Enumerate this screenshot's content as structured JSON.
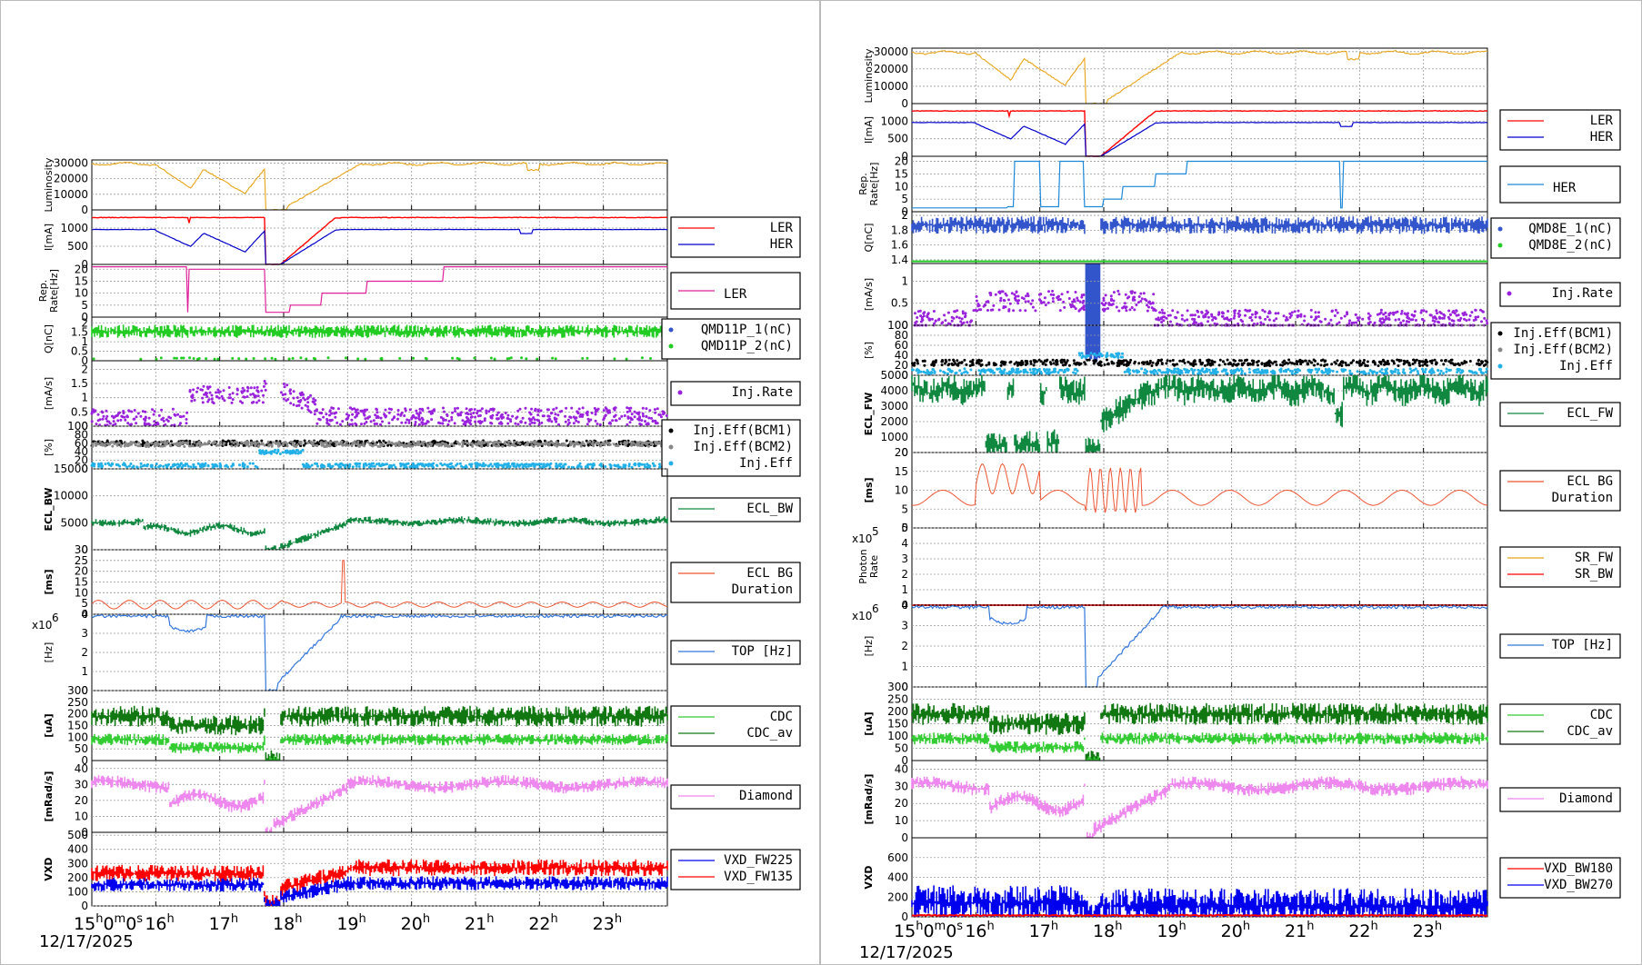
{
  "date": "12/17/2025",
  "x_axis": {
    "start_label": "15h0m0s",
    "ticks": [
      {
        "h": 16,
        "main": "16",
        "sup": "h"
      },
      {
        "h": 17,
        "main": "17",
        "sup": "h"
      },
      {
        "h": 18,
        "main": "18",
        "sup": "h"
      },
      {
        "h": 19,
        "main": "19",
        "sup": "h"
      },
      {
        "h": 20,
        "main": "20",
        "sup": "h"
      },
      {
        "h": 21,
        "main": "21",
        "sup": "h"
      },
      {
        "h": 22,
        "main": "22",
        "sup": "h"
      },
      {
        "h": 23,
        "main": "23",
        "sup": "h"
      }
    ],
    "range_hours": [
      15,
      24
    ]
  },
  "colors": {
    "luminosity": "#e8a317",
    "ler": "#ff0000",
    "her": "#0000cc",
    "rep_rate_ler": "#e0209a",
    "rep_rate_her": "#1e88d8",
    "q_ler1": "#3355cc",
    "q_ler2": "#22cc22",
    "inj_rate": "#9a22dd",
    "eff1": "#000000",
    "eff2": "#888888",
    "eff": "#22b0e8",
    "ecl": "#108840",
    "ecl_bg": "#ee5533",
    "sr_fw": "#e8a317",
    "sr_bw": "#ff0000",
    "top": "#3377dd",
    "cdc": "#33cc33",
    "cdc_av": "#117711",
    "diamond": "#ee88ee",
    "vxd_a": "#0000ee",
    "vxd_b": "#ff0000"
  },
  "panels": {
    "left": [
      {
        "key": "lum",
        "ylabel": "Luminosity",
        "yticks": [
          "30000",
          "20000",
          "10000",
          "0"
        ],
        "ylim": [
          0,
          32000
        ],
        "legend": [
          {
            "label": "",
            "kind": "none"
          }
        ]
      },
      {
        "key": "cur",
        "ylabel": "I[mA]",
        "yticks": [
          "1000",
          "500",
          "0"
        ],
        "ylim": [
          0,
          1500
        ],
        "legend": [
          {
            "label": "LER",
            "kind": "line",
            "color": "ler"
          },
          {
            "label": "HER",
            "kind": "line",
            "color": "her"
          }
        ]
      },
      {
        "key": "rep",
        "ylabel": "Rep.\nRate[Hz]",
        "yticks": [
          "20",
          "15",
          "10",
          "5",
          "0"
        ],
        "ylim": [
          0,
          22
        ],
        "legend": [
          {
            "label": "LER",
            "kind": "line",
            "color": "rep_rate_ler",
            "big": true
          }
        ]
      },
      {
        "key": "q",
        "ylabel": "Q[nC]",
        "yticks": [
          "2",
          "1.5",
          "1",
          "0.5",
          "0"
        ],
        "ylim": [
          0,
          2.3
        ],
        "legend": [
          {
            "label": "QMD11P_1(nC)",
            "kind": "dot",
            "color": "q_ler1"
          },
          {
            "label": "QMD11P_2(nC)",
            "kind": "dot",
            "color": "q_ler2"
          }
        ]
      },
      {
        "key": "ir",
        "ylabel": "[mA/s]",
        "yticks": [
          "2",
          "1.5",
          "1",
          "0.5",
          "0"
        ],
        "ylim": [
          0,
          2.3
        ],
        "legend": [
          {
            "label": "Inj.Rate",
            "kind": "dot",
            "color": "inj_rate"
          }
        ]
      },
      {
        "key": "eff",
        "ylabel": "[%]",
        "yticks": [
          "100",
          "80",
          "60",
          "40",
          "20",
          "0"
        ],
        "ylim": [
          0,
          100
        ],
        "legend": [
          {
            "label": "Inj.Eff(BCM1)",
            "kind": "dot",
            "color": "eff1"
          },
          {
            "label": "Inj.Eff(BCM2)",
            "kind": "dot",
            "color": "eff2"
          },
          {
            "label": "Inj.Eff",
            "kind": "dot",
            "color": "eff"
          }
        ]
      },
      {
        "key": "ecl",
        "ylabel": "ECL_BW",
        "yticks": [
          "15000",
          "10000",
          "5000",
          "0"
        ],
        "ylim": [
          0,
          15000
        ],
        "legend": [
          {
            "label": "ECL_BW",
            "kind": "line",
            "color": "ecl"
          }
        ]
      },
      {
        "key": "bg",
        "ylabel": "[ms]",
        "yticks": [
          "30",
          "25",
          "20",
          "15",
          "10",
          "5",
          "0"
        ],
        "ylim": [
          0,
          30
        ],
        "legend": [
          {
            "label": "ECL BG\nDuration",
            "kind": "line",
            "color": "ecl_bg"
          }
        ]
      },
      {
        "key": "top",
        "ylabel": "[Hz]",
        "scale": "x10",
        "scale_exp": "6",
        "yticks": [
          "4",
          "3",
          "2",
          "1",
          "0"
        ],
        "ylim": [
          0,
          4
        ],
        "legend": [
          {
            "label": "TOP [Hz]",
            "kind": "line",
            "color": "top"
          }
        ]
      },
      {
        "key": "cdc",
        "ylabel": "[uA]",
        "yticks": [
          "300",
          "250",
          "200",
          "150",
          "100",
          "50",
          "0"
        ],
        "ylim": [
          0,
          300
        ],
        "legend": [
          {
            "label": "CDC",
            "kind": "line",
            "color": "cdc"
          },
          {
            "label": "CDC_av",
            "kind": "line",
            "color": "cdc_av"
          }
        ]
      },
      {
        "key": "dia",
        "ylabel": "[mRad/s]",
        "yticks": [
          "40",
          "30",
          "20",
          "10",
          "0"
        ],
        "ylim": [
          0,
          45
        ],
        "legend": [
          {
            "label": "Diamond",
            "kind": "line",
            "color": "diamond"
          }
        ]
      },
      {
        "key": "vxd",
        "ylabel": "VXD",
        "yticks": [
          "500",
          "400",
          "300",
          "200",
          "100",
          "0"
        ],
        "ylim": [
          0,
          520
        ],
        "legend": [
          {
            "label": "VXD_FW225",
            "kind": "line",
            "color": "vxd_a"
          },
          {
            "label": "VXD_FW135",
            "kind": "line",
            "color": "vxd_b"
          }
        ]
      }
    ],
    "right": [
      {
        "key": "lum",
        "ylabel": "Luminosity",
        "yticks": [
          "30000",
          "20000",
          "10000",
          "0"
        ],
        "ylim": [
          0,
          32000
        ],
        "legend": [
          {
            "label": "",
            "kind": "none"
          }
        ]
      },
      {
        "key": "cur",
        "ylabel": "I[mA]",
        "yticks": [
          "1000",
          "500",
          "0"
        ],
        "ylim": [
          0,
          1500
        ],
        "legend": [
          {
            "label": "LER",
            "kind": "line",
            "color": "ler"
          },
          {
            "label": "HER",
            "kind": "line",
            "color": "her"
          }
        ]
      },
      {
        "key": "rep",
        "ylabel": "Rep.\nRate[Hz]",
        "yticks": [
          "20",
          "15",
          "10",
          "5",
          "0"
        ],
        "ylim": [
          0,
          22
        ],
        "legend": [
          {
            "label": "HER",
            "kind": "line",
            "color": "rep_rate_her",
            "big": true
          }
        ]
      },
      {
        "key": "q",
        "ylabel": "Q[nC]",
        "yticks": [
          "2",
          "1.8",
          "1.6",
          "1.4"
        ],
        "ylim": [
          1.35,
          2.05
        ],
        "legend": [
          {
            "label": "QMD8E_1(nC)",
            "kind": "dot",
            "color": "q_ler1"
          },
          {
            "label": "QMD8E_2(nC)",
            "kind": "dot",
            "color": "q_ler2"
          }
        ]
      },
      {
        "key": "ir",
        "ylabel": "[mA/s]",
        "yticks": [
          "1",
          "0.5",
          "0"
        ],
        "ylim": [
          0,
          1.4
        ],
        "legend": [
          {
            "label": "Inj.Rate",
            "kind": "dot",
            "color": "inj_rate"
          }
        ]
      },
      {
        "key": "eff",
        "ylabel": "[%]",
        "yticks": [
          "100",
          "80",
          "60",
          "40",
          "20",
          "0"
        ],
        "ylim": [
          0,
          100
        ],
        "legend": [
          {
            "label": "Inj.Eff(BCM1)",
            "kind": "dot",
            "color": "eff1"
          },
          {
            "label": "Inj.Eff(BCM2)",
            "kind": "dot",
            "color": "eff2"
          },
          {
            "label": "Inj.Eff",
            "kind": "dot",
            "color": "eff"
          }
        ]
      },
      {
        "key": "ecl",
        "ylabel": "ECL_FW",
        "yticks": [
          "5000",
          "4000",
          "3000",
          "2000",
          "1000",
          "0"
        ],
        "ylim": [
          0,
          5000
        ],
        "legend": [
          {
            "label": "ECL_FW",
            "kind": "line",
            "color": "ecl"
          }
        ]
      },
      {
        "key": "bg",
        "ylabel": "[ms]",
        "yticks": [
          "20",
          "15",
          "10",
          "5",
          "0"
        ],
        "ylim": [
          0,
          20
        ],
        "legend": [
          {
            "label": "ECL BG\nDuration",
            "kind": "line",
            "color": "ecl_bg"
          }
        ]
      },
      {
        "key": "sr",
        "ylabel": "Photon\nRate",
        "scale": "x10",
        "scale_exp": "5",
        "yticks": [
          "5",
          "4",
          "3",
          "2",
          "1",
          "0"
        ],
        "ylim": [
          0,
          5
        ],
        "legend": [
          {
            "label": "SR_FW",
            "kind": "line",
            "color": "sr_fw"
          },
          {
            "label": "SR_BW",
            "kind": "line",
            "color": "sr_bw"
          }
        ]
      },
      {
        "key": "top",
        "ylabel": "[Hz]",
        "scale": "x10",
        "scale_exp": "6",
        "yticks": [
          "4",
          "3",
          "2",
          "1",
          "0"
        ],
        "ylim": [
          0,
          4
        ],
        "legend": [
          {
            "label": "TOP [Hz]",
            "kind": "line",
            "color": "top"
          }
        ]
      },
      {
        "key": "cdc",
        "ylabel": "[uA]",
        "yticks": [
          "300",
          "250",
          "200",
          "150",
          "100",
          "50",
          "0"
        ],
        "ylim": [
          0,
          300
        ],
        "legend": [
          {
            "label": "CDC",
            "kind": "line",
            "color": "cdc"
          },
          {
            "label": "CDC_av",
            "kind": "line",
            "color": "cdc_av"
          }
        ]
      },
      {
        "key": "dia",
        "ylabel": "[mRad/s]",
        "yticks": [
          "40",
          "30",
          "20",
          "10",
          "0"
        ],
        "ylim": [
          0,
          45
        ],
        "legend": [
          {
            "label": "Diamond",
            "kind": "line",
            "color": "diamond"
          }
        ]
      },
      {
        "key": "vxd",
        "ylabel": "VXD",
        "yticks": [
          "600",
          "400",
          "200",
          "0"
        ],
        "ylim": [
          0,
          800
        ],
        "legend": [
          {
            "label": "VXD_BW180",
            "kind": "line",
            "color": "vxd_b"
          },
          {
            "label": "VXD_BW270",
            "kind": "line",
            "color": "vxd_a"
          }
        ]
      }
    ]
  },
  "chart_data": [
    {
      "type": "line",
      "title": "",
      "xlabel": "12/17/2025",
      "x_hours": [
        15,
        15.5,
        16,
        16.3,
        16.6,
        17,
        17.3,
        17.6,
        17.75,
        17.9,
        18.3,
        18.7,
        19.5,
        20.5,
        21.5,
        22,
        22.5,
        23.5,
        24
      ],
      "series": [
        {
          "name": "LER",
          "values": [
            1300,
            1300,
            1280,
            1300,
            1290,
            1300,
            1290,
            1280,
            0,
            200,
            1050,
            1280,
            1300,
            1290,
            1300,
            1290,
            1300,
            1300,
            1300
          ]
        },
        {
          "name": "HER",
          "values": [
            960,
            950,
            930,
            650,
            500,
            600,
            350,
            900,
            0,
            120,
            700,
            950,
            960,
            960,
            950,
            850,
            960,
            960,
            960
          ]
        },
        {
          "name": "ECL_BW",
          "values": [
            5400,
            5300,
            4300,
            3800,
            4100,
            3900,
            4300,
            4200,
            200,
            1000,
            2800,
            4600,
            4900,
            5200,
            5400,
            5000,
            5200,
            5300,
            5200
          ]
        },
        {
          "name": "TOP [Hz]",
          "values": [
            3.9,
            3.9,
            3.9,
            3.5,
            3.1,
            3.6,
            3.4,
            3.9,
            0,
            0.5,
            2.2,
            3.5,
            3.9,
            3.9,
            3.9,
            3.9,
            3.9,
            3.9,
            3.9
          ]
        },
        {
          "name": "Diamond",
          "values": [
            30,
            29,
            26,
            20,
            18,
            25,
            20,
            27,
            0,
            5,
            15,
            24,
            27,
            30,
            32,
            30,
            32,
            33,
            32
          ]
        },
        {
          "name": "VXD_FW135",
          "values": [
            230,
            230,
            220,
            225,
            230,
            230,
            225,
            230,
            20,
            60,
            180,
            240,
            260,
            270,
            290,
            300,
            300,
            320,
            310
          ]
        }
      ]
    },
    {
      "type": "line",
      "title": "",
      "xlabel": "12/17/2025",
      "x_hours": [
        15,
        15.5,
        16,
        16.3,
        16.6,
        17,
        17.3,
        17.6,
        17.75,
        17.9,
        18.3,
        18.7,
        19.5,
        20.5,
        21.5,
        22,
        22.5,
        23.5,
        24
      ],
      "series": [
        {
          "name": "LER",
          "values": [
            1300,
            1300,
            1280,
            1300,
            1290,
            1300,
            1290,
            1280,
            0,
            200,
            1050,
            1280,
            1300,
            1290,
            1300,
            1290,
            1300,
            1300,
            1300
          ]
        },
        {
          "name": "HER",
          "values": [
            960,
            950,
            930,
            650,
            500,
            600,
            350,
            900,
            0,
            120,
            700,
            950,
            960,
            960,
            950,
            850,
            960,
            960,
            960
          ]
        },
        {
          "name": "ECL_FW",
          "values": [
            4200,
            4200,
            4100,
            500,
            3700,
            500,
            3800,
            4000,
            200,
            1500,
            3800,
            4200,
            4100,
            4200,
            4100,
            3500,
            4200,
            4200,
            4100
          ]
        },
        {
          "name": "TOP [Hz]",
          "values": [
            3.9,
            3.9,
            3.9,
            3.5,
            3.1,
            3.6,
            3.4,
            3.9,
            0,
            0.5,
            2.2,
            3.5,
            3.9,
            3.9,
            3.9,
            3.9,
            3.9,
            3.9,
            3.9
          ]
        },
        {
          "name": "Diamond",
          "values": [
            30,
            29,
            26,
            20,
            18,
            25,
            20,
            27,
            0,
            5,
            15,
            24,
            27,
            30,
            32,
            30,
            32,
            33,
            32
          ]
        },
        {
          "name": "VXD_BW270",
          "values": [
            150,
            160,
            140,
            60,
            130,
            70,
            140,
            250,
            20,
            60,
            100,
            120,
            110,
            120,
            110,
            130,
            120,
            120,
            110
          ]
        }
      ]
    }
  ]
}
